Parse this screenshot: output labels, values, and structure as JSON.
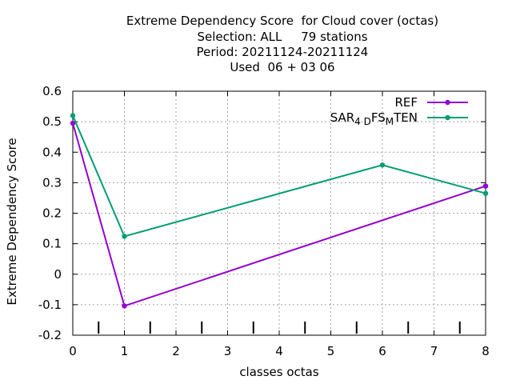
{
  "chart_data": {
    "type": "line",
    "title_lines": [
      "Extreme Dependency Score  for Cloud cover (octas)",
      "Selection: ALL     79 stations",
      "Period: 20211124-20211124",
      "Used  06 + 03 06"
    ],
    "xlabel": "classes octas",
    "ylabel": "Extreme Dependency Score",
    "xlim": [
      0,
      8
    ],
    "ylim": [
      -0.2,
      0.6
    ],
    "x_ticks": [
      "0",
      "1",
      "2",
      "3",
      "4",
      "5",
      "6",
      "7",
      "8"
    ],
    "y_ticks": [
      "-0.2",
      "-0.1",
      "0",
      "0.1",
      "0.2",
      "0.3",
      "0.4",
      "0.5",
      "0.6"
    ],
    "grid": true,
    "legend_position": "top-right",
    "series": [
      {
        "name": "REF",
        "color": "#9400d3",
        "x": [
          0,
          1,
          8
        ],
        "values": [
          0.495,
          -0.104,
          0.289
        ]
      },
      {
        "name": "SAR_{4D}FS_{M}TEN",
        "legend_parts": [
          "SAR",
          "4 D",
          "FS",
          "M",
          "TEN"
        ],
        "color": "#009e73",
        "x": [
          0,
          1,
          6,
          8
        ],
        "values": [
          0.52,
          0.124,
          0.358,
          0.265
        ]
      }
    ],
    "class_separator_marks": [
      0.5,
      1.5,
      2.5,
      3.5,
      4.5,
      5.5,
      6.5,
      7.5
    ]
  }
}
